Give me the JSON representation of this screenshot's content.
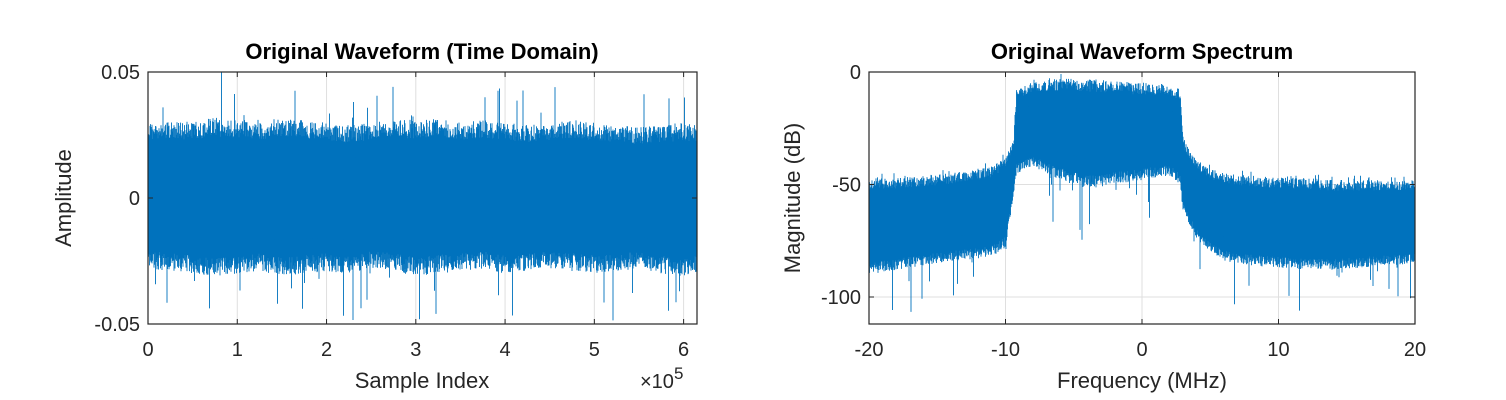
{
  "colors": {
    "series": "#0072BD",
    "axis": "#262626",
    "grid": "#dfdfdf"
  },
  "chart_data": [
    {
      "type": "line",
      "title": "Original Waveform (Time Domain)",
      "xlabel": "Sample Index",
      "ylabel": "Amplitude",
      "x_exponent_label": "×10",
      "x_exponent_power": "5",
      "xlim": [
        0,
        6.15
      ],
      "ylim": [
        -0.05,
        0.05
      ],
      "xticks": [
        0,
        1,
        2,
        3,
        4,
        5,
        6
      ],
      "xtick_labels": [
        "0",
        "1",
        "2",
        "3",
        "4",
        "5",
        "6"
      ],
      "yticks": [
        -0.05,
        0,
        0.05
      ],
      "ytick_labels": [
        "-0.05",
        "0",
        "0.05"
      ],
      "grid": true,
      "series": [
        {
          "description_values": "noise-like waveform envelope (upper/lower) per sample block",
          "x": [
            0,
            0.25,
            0.5,
            0.75,
            1,
            1.25,
            1.5,
            1.75,
            2,
            2.25,
            2.5,
            2.75,
            3,
            3.25,
            3.5,
            3.75,
            4,
            4.25,
            4.5,
            4.75,
            5,
            5.25,
            5.5,
            5.75,
            6,
            6.15
          ],
          "upper": [
            0.03,
            0.031,
            0.03,
            0.032,
            0.031,
            0.03,
            0.032,
            0.031,
            0.03,
            0.029,
            0.03,
            0.031,
            0.031,
            0.032,
            0.03,
            0.031,
            0.03,
            0.029,
            0.03,
            0.031,
            0.03,
            0.029,
            0.028,
            0.029,
            0.03,
            0.029
          ],
          "lower": [
            -0.028,
            -0.029,
            -0.03,
            -0.031,
            -0.03,
            -0.029,
            -0.031,
            -0.03,
            -0.029,
            -0.03,
            -0.028,
            -0.029,
            -0.031,
            -0.03,
            -0.029,
            -0.028,
            -0.03,
            -0.029,
            -0.028,
            -0.029,
            -0.03,
            -0.029,
            -0.028,
            -0.03,
            -0.031,
            -0.03
          ]
        }
      ]
    },
    {
      "type": "line",
      "title": "Original Waveform Spectrum",
      "xlabel": "Frequency (MHz)",
      "ylabel": "Magnitude (dB)",
      "xlim": [
        -20,
        20
      ],
      "ylim": [
        -112,
        0
      ],
      "xticks": [
        -20,
        -10,
        0,
        10,
        20
      ],
      "xtick_labels": [
        "-20",
        "-10",
        "0",
        "10",
        "20"
      ],
      "yticks": [
        -100,
        -50,
        0
      ],
      "ytick_labels": [
        "-100",
        "-50",
        "0"
      ],
      "grid": true,
      "series": [
        {
          "description_values": "spectrum upper envelope and lower envelope in dB",
          "x": [
            -20,
            -18,
            -16,
            -14,
            -12,
            -11,
            -10,
            -9.4,
            -9.2,
            -8,
            -6,
            -4,
            -2,
            0,
            2,
            2.8,
            3.0,
            4,
            5,
            6,
            8,
            10,
            12,
            14,
            16,
            18,
            20
          ],
          "upper": [
            -47,
            -47,
            -46,
            -45,
            -43,
            -42,
            -38,
            -30,
            -8,
            -4,
            -3,
            -3,
            -4,
            -5,
            -6,
            -7,
            -30,
            -39,
            -43,
            -45,
            -46,
            -47,
            -47,
            -48,
            -48,
            -48,
            -48
          ],
          "lower": [
            -90,
            -88,
            -86,
            -84,
            -83,
            -82,
            -78,
            -55,
            -45,
            -42,
            -48,
            -52,
            -50,
            -48,
            -46,
            -50,
            -62,
            -74,
            -80,
            -84,
            -86,
            -87,
            -88,
            -88,
            -87,
            -86,
            -85
          ]
        }
      ]
    }
  ]
}
